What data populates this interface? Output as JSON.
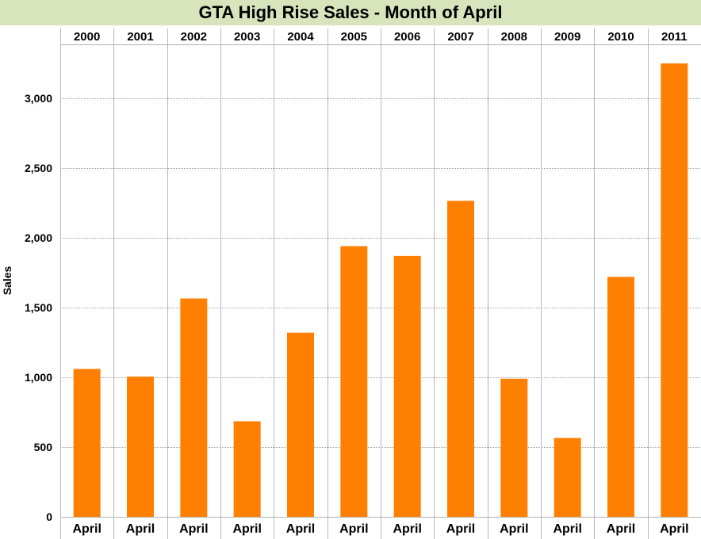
{
  "chart_data": {
    "type": "bar",
    "title": "GTA High Rise Sales - Month of April",
    "ylabel": "Sales",
    "xlabel": "",
    "categories": [
      "2000",
      "2001",
      "2002",
      "2003",
      "2004",
      "2005",
      "2006",
      "2007",
      "2008",
      "2009",
      "2010",
      "2011"
    ],
    "sublabels": [
      "April",
      "April",
      "April",
      "April",
      "April",
      "April",
      "April",
      "April",
      "April",
      "April",
      "April",
      "April"
    ],
    "values": [
      1060,
      1005,
      1565,
      685,
      1320,
      1940,
      1870,
      2265,
      990,
      565,
      1720,
      3250
    ],
    "ylim": [
      0,
      3500
    ],
    "yticks": [
      0,
      500,
      1000,
      1500,
      2000,
      2500,
      3000
    ],
    "ytick_labels": [
      "0",
      "500",
      "1,000",
      "1,500",
      "2,000",
      "2,500",
      "3,000"
    ],
    "bar_color": "#ff8000",
    "title_background": "#d8e4bc",
    "grid": true
  }
}
